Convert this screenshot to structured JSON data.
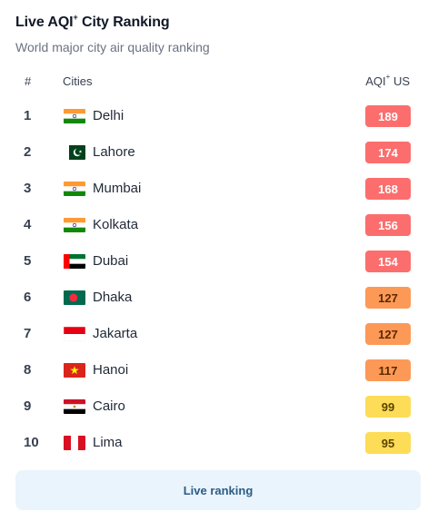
{
  "header": {
    "title": "Live AQI",
    "title_sup": "+",
    "title_suffix": " City Ranking",
    "subtitle": "World major city air quality ranking"
  },
  "columns": {
    "rank": "#",
    "city": "Cities",
    "aqi": "AQI",
    "aqi_sup": "+",
    "aqi_suffix": " US"
  },
  "rows": [
    {
      "rank": "1",
      "city": "Delhi",
      "aqi": "189",
      "flag": "india-flag",
      "color": "#fc6e6e",
      "text_color": "#ffffff"
    },
    {
      "rank": "2",
      "city": "Lahore",
      "aqi": "174",
      "flag": "pakistan-flag",
      "color": "#fc6e6e",
      "text_color": "#ffffff"
    },
    {
      "rank": "3",
      "city": "Mumbai",
      "aqi": "168",
      "flag": "india-flag",
      "color": "#fc6e6e",
      "text_color": "#ffffff"
    },
    {
      "rank": "4",
      "city": "Kolkata",
      "aqi": "156",
      "flag": "india-flag",
      "color": "#fc6e6e",
      "text_color": "#ffffff"
    },
    {
      "rank": "5",
      "city": "Dubai",
      "aqi": "154",
      "flag": "uae-flag",
      "color": "#fc6e6e",
      "text_color": "#ffffff"
    },
    {
      "rank": "6",
      "city": "Dhaka",
      "aqi": "127",
      "flag": "bangladesh-flag",
      "color": "#fd9957",
      "text_color": "#5a2a00"
    },
    {
      "rank": "7",
      "city": "Jakarta",
      "aqi": "127",
      "flag": "indonesia-flag",
      "color": "#fd9957",
      "text_color": "#5a2a00"
    },
    {
      "rank": "8",
      "city": "Hanoi",
      "aqi": "117",
      "flag": "vietnam-flag",
      "color": "#fd9957",
      "text_color": "#5a2a00"
    },
    {
      "rank": "9",
      "city": "Cairo",
      "aqi": "99",
      "flag": "egypt-flag",
      "color": "#fddc57",
      "text_color": "#5a4400"
    },
    {
      "rank": "10",
      "city": "Lima",
      "aqi": "95",
      "flag": "peru-flag",
      "color": "#fddc57",
      "text_color": "#5a4400"
    }
  ],
  "footer": {
    "button_label": "Live ranking"
  }
}
